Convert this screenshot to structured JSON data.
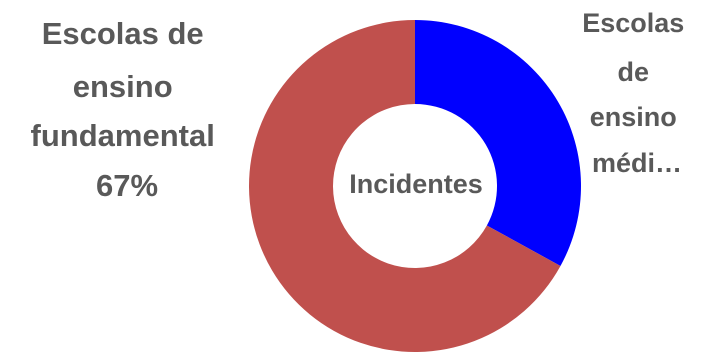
{
  "chart_data": {
    "type": "pie",
    "variant": "doughnut",
    "center_label": "Incidentes",
    "slices": [
      {
        "label_lines": [
          "Escolas",
          "de",
          "ensino",
          "médi…"
        ],
        "value": 33,
        "color": "#0000ff"
      },
      {
        "label_lines": [
          "Escolas de",
          "ensino",
          "fundamental",
          "67%"
        ],
        "value": 67,
        "color": "#c0504d"
      }
    ]
  }
}
